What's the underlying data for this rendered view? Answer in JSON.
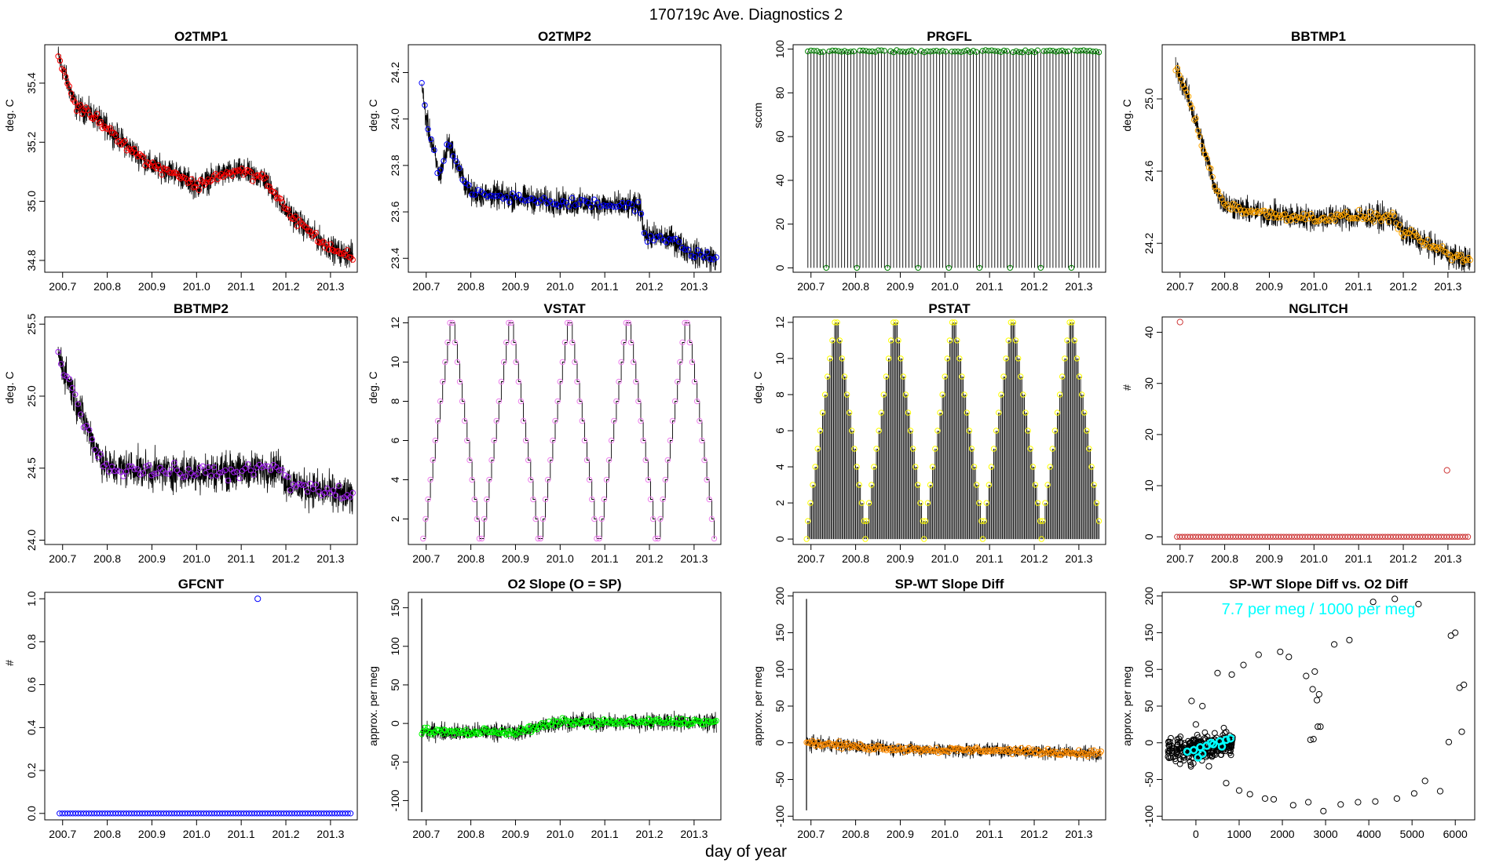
{
  "figure": {
    "title": "170719c   Ave. Diagnostics 2",
    "xlabel": "day of year"
  },
  "chart_data": [
    {
      "id": "o2tmp1",
      "type": "line",
      "title": "O2TMP1",
      "ylabel": "deg. C",
      "xlim": [
        200.66,
        201.36
      ],
      "ylim": [
        34.76,
        35.53
      ],
      "xticks": [
        200.7,
        200.8,
        200.9,
        201.0,
        201.1,
        201.2,
        201.3
      ],
      "xticklabels": [
        "200.7",
        "200.8",
        "200.9",
        "201.0",
        "201.1",
        "201.2",
        "201.3"
      ],
      "yticks": [
        34.8,
        35.0,
        35.2,
        35.4
      ],
      "yticklabels": [
        "34.8",
        "35.0",
        "35.2",
        "35.4"
      ],
      "marker_color": "#ff0000",
      "line_color": "#000000",
      "trend_x": [
        200.69,
        200.7,
        200.73,
        200.76,
        200.8,
        200.85,
        200.9,
        200.95,
        201.0,
        201.05,
        201.1,
        201.15,
        201.2,
        201.25,
        201.3,
        201.33,
        201.35
      ],
      "trend_y": [
        35.49,
        35.45,
        35.32,
        35.3,
        35.25,
        35.18,
        35.12,
        35.1,
        35.05,
        35.09,
        35.1,
        35.08,
        34.97,
        34.9,
        34.84,
        34.82,
        34.82
      ],
      "noise": 0.03,
      "n_markers": 160
    },
    {
      "id": "o2tmp2",
      "type": "line",
      "title": "O2TMP2",
      "ylabel": "deg. C",
      "xlim": [
        200.66,
        201.36
      ],
      "ylim": [
        23.34,
        24.32
      ],
      "xticks": [
        200.7,
        200.8,
        200.9,
        201.0,
        201.1,
        201.2,
        201.3
      ],
      "xticklabels": [
        "200.7",
        "200.8",
        "200.9",
        "201.0",
        "201.1",
        "201.2",
        "201.3"
      ],
      "yticks": [
        23.4,
        23.6,
        23.8,
        24.0,
        24.2
      ],
      "yticklabels": [
        "23.4",
        "23.6",
        "23.8",
        "24.0",
        "24.2"
      ],
      "marker_color": "#0000ff",
      "line_color": "#000000",
      "trend_x": [
        200.69,
        200.7,
        200.73,
        200.75,
        200.78,
        200.8,
        200.9,
        201.0,
        201.1,
        201.18,
        201.19,
        201.25,
        201.3,
        201.35
      ],
      "trend_y": [
        24.14,
        24.0,
        23.75,
        23.9,
        23.75,
        23.68,
        23.66,
        23.64,
        23.63,
        23.62,
        23.5,
        23.48,
        23.42,
        23.4
      ],
      "noise": 0.04,
      "n_markers": 95
    },
    {
      "id": "prgfl",
      "type": "line",
      "title": "PRGFL",
      "ylabel": "sccm",
      "xlim": [
        200.66,
        201.36
      ],
      "ylim": [
        -2,
        102
      ],
      "xticks": [
        200.7,
        200.8,
        200.9,
        201.0,
        201.1,
        201.2,
        201.3
      ],
      "xticklabels": [
        "200.7",
        "200.8",
        "200.9",
        "201.0",
        "201.1",
        "201.2",
        "201.3"
      ],
      "yticks": [
        0,
        20,
        40,
        60,
        80,
        100
      ],
      "yticklabels": [
        "0",
        "20",
        "40",
        "60",
        "80",
        "100"
      ],
      "marker_color": "#008000",
      "line_color": "#000000",
      "spike": {
        "x_start": 200.693,
        "x_end": 201.345,
        "count": 96,
        "high": 99,
        "low": 0,
        "zero_every": 10
      }
    },
    {
      "id": "bbtmp1",
      "type": "line",
      "title": "BBTMP1",
      "ylabel": "deg. C",
      "xlim": [
        200.66,
        201.36
      ],
      "ylim": [
        24.04,
        25.3
      ],
      "xticks": [
        200.7,
        200.8,
        200.9,
        201.0,
        201.1,
        201.2,
        201.3
      ],
      "xticklabels": [
        "200.7",
        "200.8",
        "200.9",
        "201.0",
        "201.1",
        "201.2",
        "201.3"
      ],
      "yticks": [
        24.2,
        24.6,
        25.0
      ],
      "yticklabels": [
        "24.2",
        "24.6",
        "25.0"
      ],
      "marker_color": "#ffa500",
      "line_color": "#000000",
      "trend_x": [
        200.69,
        200.7,
        200.72,
        200.75,
        200.78,
        200.8,
        200.85,
        200.9,
        201.0,
        201.1,
        201.18,
        201.2,
        201.25,
        201.3,
        201.35
      ],
      "trend_y": [
        25.18,
        25.12,
        25.0,
        24.75,
        24.5,
        24.42,
        24.38,
        24.36,
        24.34,
        24.35,
        24.34,
        24.26,
        24.2,
        24.14,
        24.1
      ],
      "noise": 0.05,
      "n_markers": 160
    },
    {
      "id": "bbtmp2",
      "type": "line",
      "title": "BBTMP2",
      "ylabel": "deg. C",
      "xlim": [
        200.66,
        201.36
      ],
      "ylim": [
        23.97,
        25.55
      ],
      "xticks": [
        200.7,
        200.8,
        200.9,
        201.0,
        201.1,
        201.2,
        201.3
      ],
      "xticklabels": [
        "200.7",
        "200.8",
        "200.9",
        "201.0",
        "201.1",
        "201.2",
        "201.3"
      ],
      "yticks": [
        24.0,
        24.5,
        25.0,
        25.5
      ],
      "yticklabels": [
        "24.0",
        "24.5",
        "25.0",
        "25.5"
      ],
      "marker_color": "#a020f0",
      "line_color": "#000000",
      "trend_x": [
        200.69,
        200.7,
        200.72,
        200.75,
        200.78,
        200.8,
        200.85,
        200.9,
        201.0,
        201.1,
        201.19,
        201.2,
        201.25,
        201.3,
        201.35
      ],
      "trend_y": [
        25.3,
        25.2,
        25.05,
        24.82,
        24.6,
        24.5,
        24.5,
        24.48,
        24.47,
        24.48,
        24.5,
        24.4,
        24.36,
        24.33,
        24.3
      ],
      "noise": 0.09,
      "n_markers": 105
    },
    {
      "id": "vstat",
      "type": "line",
      "title": "VSTAT",
      "ylabel": "deg. C",
      "xlim": [
        200.66,
        201.36
      ],
      "ylim": [
        0.7,
        12.3
      ],
      "xticks": [
        200.7,
        200.8,
        200.9,
        201.0,
        201.1,
        201.2,
        201.3
      ],
      "xticklabels": [
        "200.7",
        "200.8",
        "200.9",
        "201.0",
        "201.1",
        "201.2",
        "201.3"
      ],
      "yticks": [
        2,
        4,
        6,
        8,
        10,
        12
      ],
      "yticklabels": [
        "2",
        "4",
        "6",
        "8",
        "10",
        "12"
      ],
      "marker_color": "#ee82ee",
      "line_color": "#000000",
      "cycle": {
        "x_start": 200.693,
        "x_end": 201.345,
        "cycles": 5,
        "pattern": [
          1,
          2,
          3,
          4,
          5,
          6,
          7,
          8,
          9,
          10,
          11,
          12,
          12,
          11,
          10,
          9,
          8,
          7,
          6,
          5,
          4,
          3,
          2,
          1
        ],
        "spikes": false
      }
    },
    {
      "id": "pstat",
      "type": "line",
      "title": "PSTAT",
      "ylabel": "deg. C",
      "xlim": [
        200.66,
        201.36
      ],
      "ylim": [
        -0.3,
        12.3
      ],
      "xticks": [
        200.7,
        200.8,
        200.9,
        201.0,
        201.1,
        201.2,
        201.3
      ],
      "xticklabels": [
        "200.7",
        "200.8",
        "200.9",
        "201.0",
        "201.1",
        "201.2",
        "201.3"
      ],
      "yticks": [
        0,
        2,
        4,
        6,
        8,
        10,
        12
      ],
      "yticklabels": [
        "0",
        "2",
        "4",
        "6",
        "8",
        "10",
        "12"
      ],
      "marker_color": "#ffff00",
      "line_color": "#000000",
      "cycle": {
        "x_start": 200.693,
        "x_end": 201.345,
        "cycles": 5,
        "pattern": [
          1,
          2,
          3,
          4,
          5,
          6,
          7,
          8,
          9,
          10,
          11,
          12,
          12,
          11,
          10,
          9,
          8,
          7,
          6,
          5,
          4,
          3,
          2,
          1
        ],
        "spikes": true
      }
    },
    {
      "id": "nglitch",
      "type": "scatter",
      "title": "NGLITCH",
      "ylabel": "#",
      "xlim": [
        200.66,
        201.36
      ],
      "ylim": [
        -1.5,
        43
      ],
      "xticks": [
        200.7,
        200.8,
        200.9,
        201.0,
        201.1,
        201.2,
        201.3
      ],
      "xticklabels": [
        "200.7",
        "200.8",
        "200.9",
        "201.0",
        "201.1",
        "201.2",
        "201.3"
      ],
      "yticks": [
        0,
        10,
        20,
        30,
        40
      ],
      "yticklabels": [
        "0",
        "10",
        "20",
        "30",
        "40"
      ],
      "marker_color": "#cd3333",
      "baseline": {
        "x_start": 200.693,
        "x_end": 201.345,
        "count": 110,
        "y": 0
      },
      "outliers": [
        [
          200.7,
          42
        ],
        [
          201.298,
          13
        ]
      ]
    },
    {
      "id": "gfcnt",
      "type": "scatter",
      "title": "GFCNT",
      "ylabel": "#",
      "xlim": [
        200.66,
        201.36
      ],
      "ylim": [
        -0.03,
        1.03
      ],
      "xticks": [
        200.7,
        200.8,
        200.9,
        201.0,
        201.1,
        201.2,
        201.3
      ],
      "xticklabels": [
        "200.7",
        "200.8",
        "200.9",
        "201.0",
        "201.1",
        "201.2",
        "201.3"
      ],
      "yticks": [
        0.0,
        0.2,
        0.4,
        0.6,
        0.8,
        1.0
      ],
      "yticklabels": [
        "0.0",
        "0.2",
        "0.4",
        "0.6",
        "0.8",
        "1.0"
      ],
      "marker_color": "#0000ff",
      "baseline": {
        "x_start": 200.693,
        "x_end": 201.345,
        "count": 110,
        "y": 0
      },
      "outliers": [
        [
          201.137,
          1.0
        ]
      ]
    },
    {
      "id": "o2slope",
      "type": "line",
      "title": "O2 Slope (O = SP)",
      "ylabel": "approx. per meg",
      "xlim": [
        200.66,
        201.36
      ],
      "ylim": [
        -125,
        170
      ],
      "xticks": [
        200.7,
        200.8,
        200.9,
        201.0,
        201.1,
        201.2,
        201.3
      ],
      "xticklabels": [
        "200.7",
        "200.8",
        "200.9",
        "201.0",
        "201.1",
        "201.2",
        "201.3"
      ],
      "yticks": [
        -100,
        -50,
        0,
        50,
        100,
        150
      ],
      "yticklabels": [
        "-100",
        "-50",
        "0",
        "50",
        "100",
        "150"
      ],
      "marker_color": "#00ff00",
      "line_color": "#000000",
      "spike_line": {
        "x": 200.69,
        "top": 162,
        "bottom": -115
      },
      "trend_x": [
        200.69,
        200.8,
        200.85,
        200.9,
        200.95,
        201.0,
        201.1,
        201.2,
        201.3,
        201.35
      ],
      "trend_y": [
        -10,
        -12,
        -10,
        -12,
        -5,
        2,
        1,
        2,
        2,
        2
      ],
      "noise": 8,
      "n_markers": 200
    },
    {
      "id": "spwt",
      "type": "line",
      "title": "SP-WT Slope Diff",
      "ylabel": "approx. per meg",
      "xlim": [
        200.66,
        201.36
      ],
      "ylim": [
        -105,
        205
      ],
      "xticks": [
        200.7,
        200.8,
        200.9,
        201.0,
        201.1,
        201.2,
        201.3
      ],
      "xticklabels": [
        "200.7",
        "200.8",
        "200.9",
        "201.0",
        "201.1",
        "201.2",
        "201.3"
      ],
      "yticks": [
        -100,
        -50,
        0,
        50,
        100,
        150,
        200
      ],
      "yticklabels": [
        "-100",
        "-50",
        "0",
        "50",
        "100",
        "150",
        "200"
      ],
      "marker_color": "#ff8c00",
      "line_color": "#000000",
      "spike_line": {
        "x": 200.69,
        "top": 196,
        "bottom": -92
      },
      "trend_x": [
        200.69,
        200.8,
        200.9,
        201.0,
        201.1,
        201.2,
        201.3,
        201.35
      ],
      "trend_y": [
        0,
        -5,
        -8,
        -10,
        -10,
        -12,
        -14,
        -14
      ],
      "noise": 7,
      "n_markers": 200
    },
    {
      "id": "scatterdiff",
      "type": "scatter",
      "title": "SP-WT Slope Diff vs. O2 Diff",
      "ylabel": "approx. per meg",
      "xlim": [
        -780,
        6450
      ],
      "ylim": [
        -105,
        205
      ],
      "xticks": [
        0,
        1000,
        2000,
        3000,
        4000,
        5000,
        6000
      ],
      "xticklabels": [
        "0",
        "1000",
        "2000",
        "3000",
        "4000",
        "5000",
        "6000"
      ],
      "yticks": [
        -100,
        -50,
        0,
        50,
        100,
        150,
        200
      ],
      "yticklabels": [
        "-100",
        "-50",
        "0",
        "50",
        "100",
        "150",
        "200"
      ],
      "annotation": "7.7 per meg / 1000 per meg",
      "annotation_color": "#00ffff",
      "cluster": {
        "x_min": -650,
        "x_max": 850,
        "y_center": -8,
        "y_spread": 22,
        "count": 260
      },
      "cyan_points": [
        [
          -200,
          -12
        ],
        [
          -50,
          -10
        ],
        [
          100,
          -6
        ],
        [
          250,
          -4
        ],
        [
          400,
          -2
        ],
        [
          550,
          2
        ],
        [
          700,
          4
        ],
        [
          800,
          6
        ],
        [
          150,
          -15
        ],
        [
          350,
          0
        ],
        [
          600,
          -5
        ],
        [
          50,
          -20
        ]
      ],
      "outer_points": [
        [
          -100,
          57
        ],
        [
          -60,
          -28
        ],
        [
          0,
          25
        ],
        [
          150,
          50
        ],
        [
          300,
          -32
        ],
        [
          500,
          95
        ],
        [
          700,
          -55
        ],
        [
          830,
          93
        ],
        [
          1000,
          -65
        ],
        [
          1100,
          106
        ],
        [
          1250,
          -70
        ],
        [
          1450,
          120
        ],
        [
          1600,
          -76
        ],
        [
          1800,
          -77
        ],
        [
          1950,
          124
        ],
        [
          2150,
          117
        ],
        [
          2250,
          -85
        ],
        [
          2550,
          91
        ],
        [
          2600,
          -81
        ],
        [
          2650,
          4
        ],
        [
          2700,
          73
        ],
        [
          2720,
          5
        ],
        [
          2750,
          97
        ],
        [
          2800,
          58
        ],
        [
          2820,
          22
        ],
        [
          2850,
          66
        ],
        [
          2880,
          22
        ],
        [
          2950,
          -93
        ],
        [
          3200,
          134
        ],
        [
          3350,
          -84
        ],
        [
          3550,
          140
        ],
        [
          3750,
          -81
        ],
        [
          4100,
          192
        ],
        [
          4150,
          -80
        ],
        [
          4600,
          196
        ],
        [
          4650,
          -76
        ],
        [
          5050,
          -69
        ],
        [
          5150,
          189
        ],
        [
          5300,
          -52
        ],
        [
          5650,
          -66
        ],
        [
          5850,
          1
        ],
        [
          5900,
          146
        ],
        [
          6000,
          150
        ],
        [
          6100,
          75
        ],
        [
          6150,
          15
        ],
        [
          6200,
          79
        ]
      ]
    }
  ]
}
